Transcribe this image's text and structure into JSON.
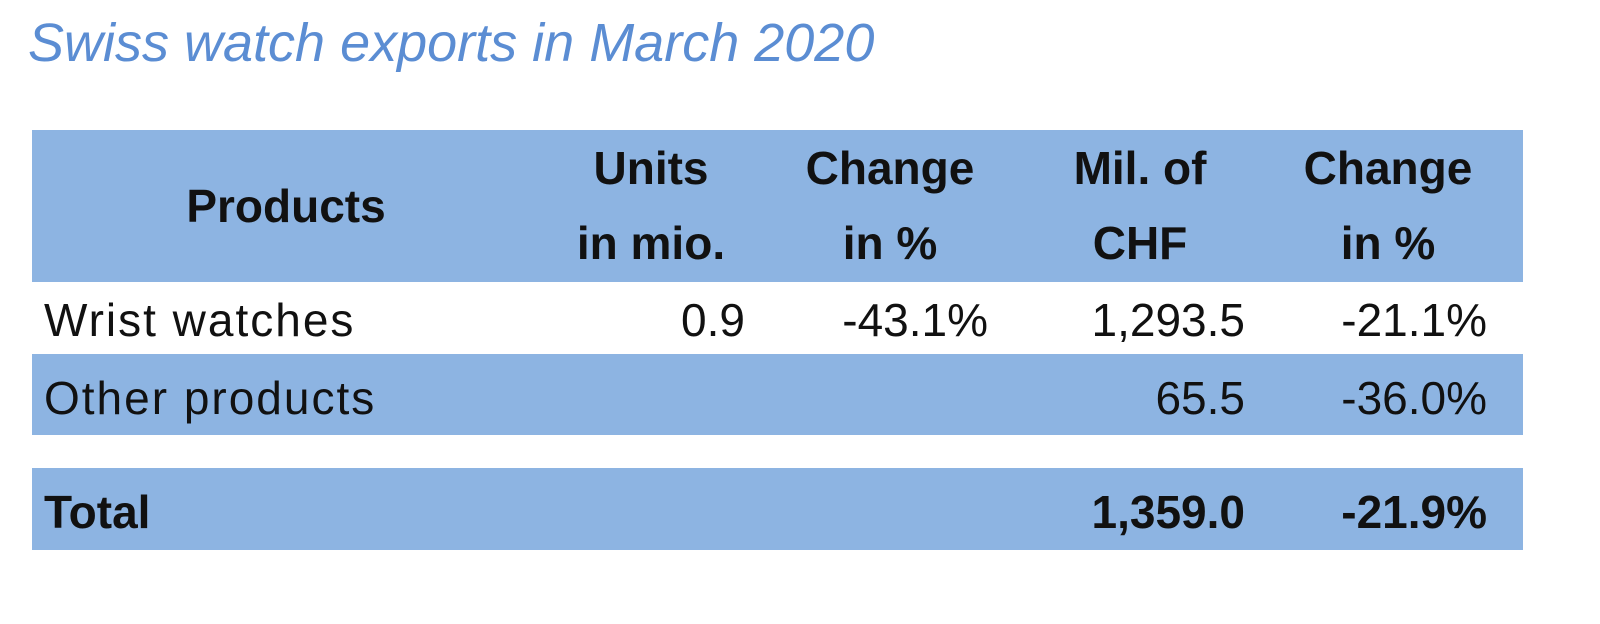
{
  "title": "Swiss watch exports in March 2020",
  "table": {
    "header": [
      [
        "Products"
      ],
      [
        "Units",
        "in mio."
      ],
      [
        "Change",
        "in %"
      ],
      [
        "Mil. of",
        "CHF"
      ],
      [
        "Change",
        "in %"
      ]
    ],
    "rows": [
      {
        "product": "Wrist watches",
        "units": "0.9",
        "units_change": "-43.1%",
        "chf": "1,293.5",
        "chf_change": "-21.1%"
      },
      {
        "product": "Other products",
        "chf": "65.5",
        "chf_change": "-36.0%"
      }
    ],
    "total": {
      "product": "Total",
      "chf": "1,359.0",
      "chf_change": "-21.9%"
    }
  }
}
